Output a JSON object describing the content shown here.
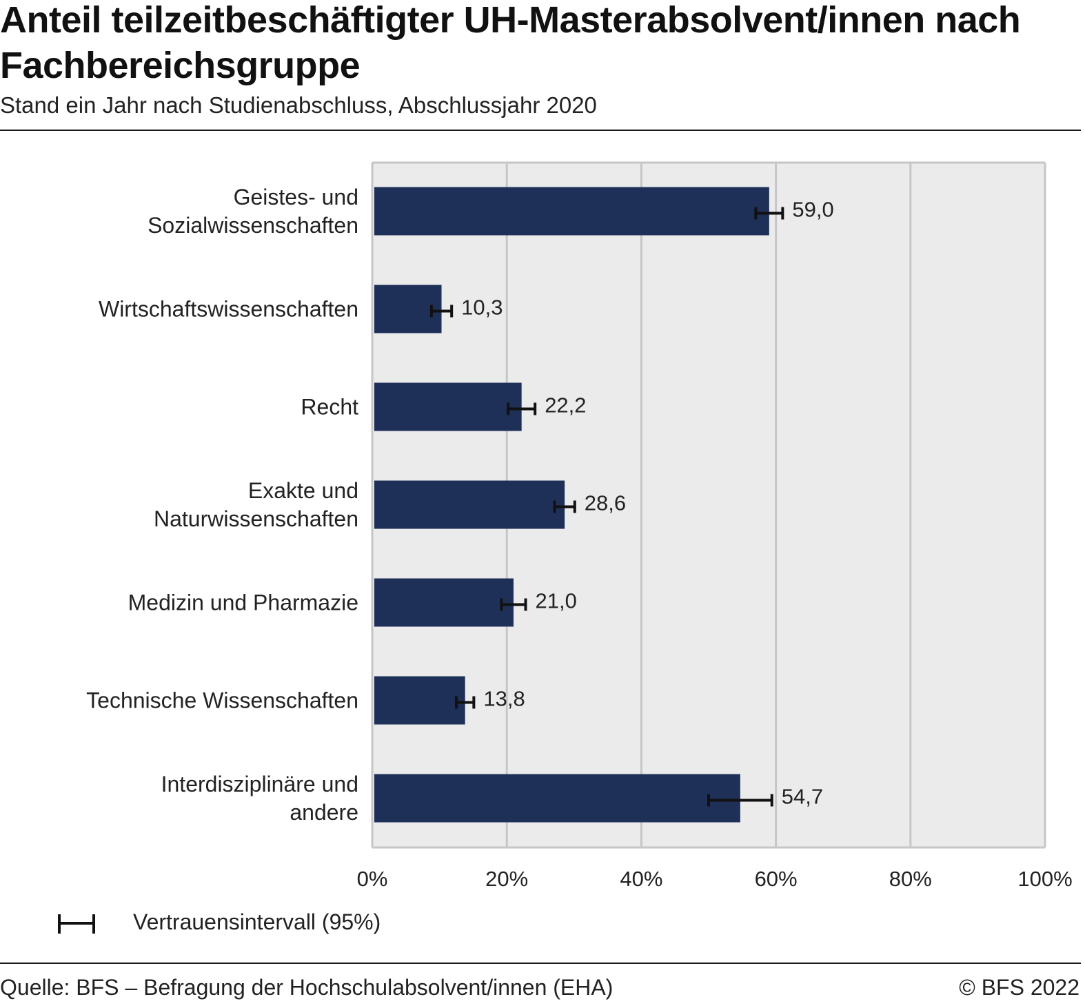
{
  "header": {
    "title": "Anteil teilzeitbeschäftigter UH-Masterabsolvent/innen nach Fachbereichsgruppe",
    "subtitle": "Stand ein Jahr nach Studienabschluss, Abschlussjahr 2020"
  },
  "legend": {
    "label": "Vertrauensintervall (95%)"
  },
  "footer": {
    "source": "Quelle: BFS – Befragung der Hochschulabsolvent/innen (EHA)",
    "copyright": "© BFS 2022"
  },
  "colors": {
    "bar": "#1f3058",
    "plot_background": "#ebebeb",
    "gridline": "#c6c6c6",
    "error_bar": "#111111"
  },
  "chart_data": {
    "type": "bar",
    "orientation": "horizontal",
    "categories": [
      [
        "Geistes- und",
        "Sozialwissenschaften"
      ],
      [
        "Wirtschaftswissenschaften"
      ],
      [
        "Recht"
      ],
      [
        "Exakte und",
        "Naturwissenschaften"
      ],
      [
        "Medizin und Pharmazie"
      ],
      [
        "Technische Wissenschaften"
      ],
      [
        "Interdisziplinäre und",
        "andere"
      ]
    ],
    "values": [
      59.0,
      10.3,
      22.2,
      28.6,
      21.0,
      13.8,
      54.7
    ],
    "value_labels": [
      "59,0",
      "10,3",
      "22,2",
      "28,6",
      "21,0",
      "13,8",
      "54,7"
    ],
    "confidence_interval_95": [
      [
        57.0,
        61.0
      ],
      [
        8.8,
        11.8
      ],
      [
        20.2,
        24.2
      ],
      [
        27.1,
        30.1
      ],
      [
        19.2,
        22.8
      ],
      [
        12.5,
        15.1
      ],
      [
        50.0,
        59.4
      ]
    ],
    "xlim": [
      0,
      100
    ],
    "xticks": [
      0,
      20,
      40,
      60,
      80,
      100
    ],
    "xtick_labels": [
      "0%",
      "20%",
      "40%",
      "60%",
      "80%",
      "100%"
    ],
    "grid": true,
    "legend_position": "bottom-left"
  }
}
